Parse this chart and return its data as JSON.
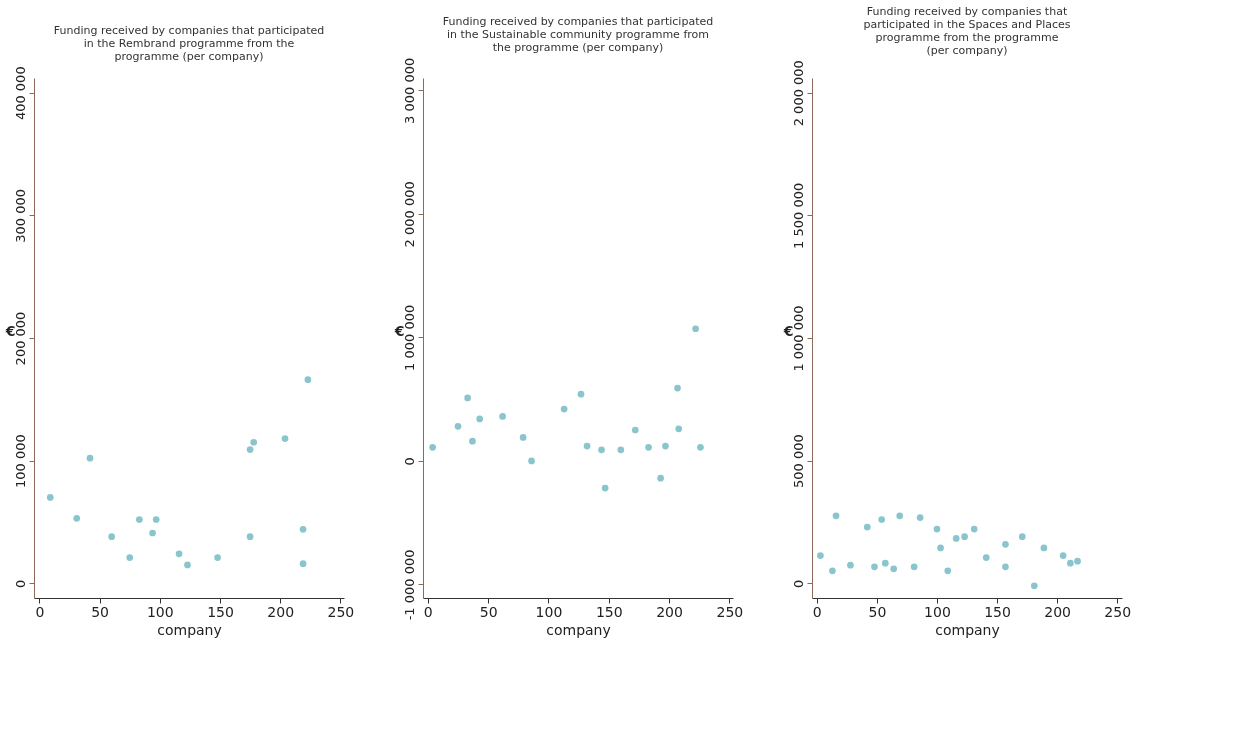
{
  "chart_data": [
    {
      "type": "scatter",
      "title": "Funding received by companies that participated\nin the Rembrand programme from the\nprogramme (per company)",
      "xlabel": "company",
      "ylabel": "€",
      "xlim": [
        -4.5,
        253
      ],
      "xticks": [
        0,
        50,
        100,
        150,
        200,
        250
      ],
      "ylim": [
        -12000,
        412000
      ],
      "yticks": [
        {
          "value": 0,
          "label": "0"
        },
        {
          "value": 100000,
          "label": "100 000"
        },
        {
          "value": 200000,
          "label": "200 000"
        },
        {
          "value": 300000,
          "label": "300 000"
        },
        {
          "value": 400000,
          "label": "400 000"
        }
      ],
      "grid": false,
      "marker": "circle",
      "series": [
        {
          "color": "#7dbfc9",
          "x": [
            9,
            31,
            42,
            60,
            75,
            83,
            94,
            97,
            116,
            123,
            148,
            175,
            178,
            175,
            204,
            219,
            219,
            223
          ],
          "values": [
            70000,
            53000,
            102000,
            38000,
            21000,
            52000,
            41000,
            52000,
            24000,
            15000,
            21000,
            38000,
            115000,
            109000,
            118000,
            44000,
            16000,
            166000
          ]
        }
      ]
    },
    {
      "type": "scatter",
      "title": "Funding received by companies that participated\nin the Sustainable community programme from\nthe programme (per company)",
      "xlabel": "company",
      "ylabel": "€",
      "xlim": [
        -4,
        253
      ],
      "xticks": [
        0,
        50,
        100,
        150,
        200,
        250
      ],
      "ylim": [
        -1110000,
        3100000
      ],
      "yticks": [
        {
          "value": -1000000,
          "label": "-1 000 000"
        },
        {
          "value": 0,
          "label": "0"
        },
        {
          "value": 1000000,
          "label": "1 000 000"
        },
        {
          "value": 2000000,
          "label": "2 000 000"
        },
        {
          "value": 3000000,
          "label": "3 000 000"
        }
      ],
      "grid": false,
      "marker": "circle",
      "series": [
        {
          "color": "#7dbfc9",
          "x": [
            4,
            25,
            33,
            37,
            43,
            62,
            79,
            86,
            113,
            127,
            132,
            144,
            147,
            160,
            172,
            183,
            193,
            197,
            207,
            208,
            222,
            226
          ],
          "values": [
            110000,
            280000,
            510000,
            160000,
            340000,
            360000,
            190000,
            0,
            420000,
            540000,
            120000,
            90000,
            -220000,
            90000,
            250000,
            110000,
            -140000,
            120000,
            590000,
            260000,
            1070000,
            110000
          ]
        }
      ]
    },
    {
      "type": "scatter",
      "title": "Funding received by companies that\nparticipated in the Spaces and Places\nprogramme from the programme\n(per company)",
      "xlabel": "company",
      "ylabel": "€",
      "xlim": [
        -4,
        254
      ],
      "xticks": [
        0,
        50,
        100,
        150,
        200,
        250
      ],
      "ylim": [
        -60000,
        2060000
      ],
      "yticks": [
        {
          "value": 0,
          "label": "0"
        },
        {
          "value": 500000,
          "label": "500 000"
        },
        {
          "value": 1000000,
          "label": "1 000 000"
        },
        {
          "value": 1500000,
          "label": "1 500 000"
        },
        {
          "value": 2000000,
          "label": "2 000 000"
        }
      ],
      "grid": false,
      "marker": "circle",
      "series": [
        {
          "color": "#7dbfc9",
          "x": [
            3,
            13,
            16,
            28,
            42,
            48,
            54,
            57,
            64,
            69,
            81,
            86,
            100,
            103,
            109,
            116,
            123,
            131,
            141,
            157,
            157,
            171,
            181,
            189,
            205,
            211,
            217
          ],
          "values": [
            113000,
            51000,
            275000,
            74000,
            229000,
            67000,
            260000,
            82000,
            59000,
            275000,
            67000,
            268000,
            221000,
            144000,
            51000,
            183000,
            190000,
            221000,
            105000,
            67000,
            159000,
            190000,
            -10000,
            144000,
            113000,
            82000,
            90000
          ]
        }
      ]
    }
  ]
}
